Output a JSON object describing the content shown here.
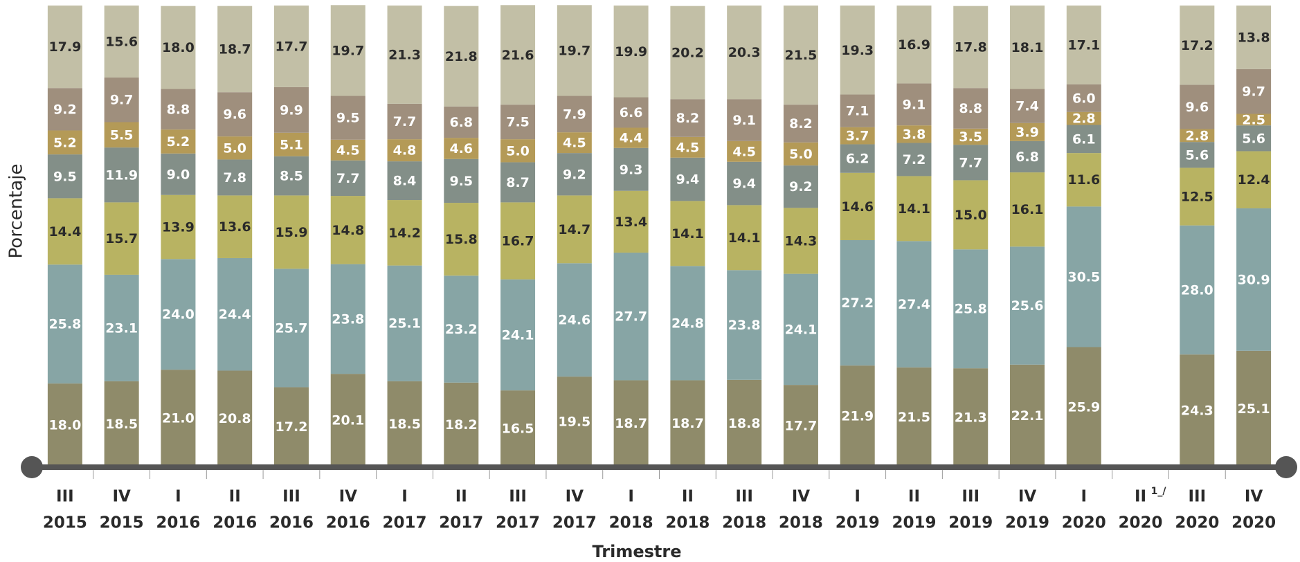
{
  "chart_data": {
    "type": "stacked_bar",
    "x_label": "Trimestre",
    "y_label": "Porcentaje",
    "categories": [
      [
        "III",
        "2015"
      ],
      [
        "IV",
        "2015"
      ],
      [
        "I",
        "2016"
      ],
      [
        "II",
        "2016"
      ],
      [
        "III",
        "2016"
      ],
      [
        "IV",
        "2016"
      ],
      [
        "I",
        "2017"
      ],
      [
        "II",
        "2017"
      ],
      [
        "III",
        "2017"
      ],
      [
        "IV",
        "2017"
      ],
      [
        "I",
        "2018"
      ],
      [
        "II",
        "2018"
      ],
      [
        "III",
        "2018"
      ],
      [
        "IV",
        "2018"
      ],
      [
        "I",
        "2019"
      ],
      [
        "II",
        "2019"
      ],
      [
        "III",
        "2019"
      ],
      [
        "IV",
        "2019"
      ],
      [
        "I",
        "2020"
      ],
      [
        "II",
        "2020",
        "1_/"
      ],
      [
        "III",
        "2020"
      ],
      [
        "IV",
        "2020"
      ]
    ],
    "ylim": [
      0,
      100
    ],
    "series": [
      {
        "color": "#8f8b6a",
        "label_color": "#ffffff",
        "values": [
          18.0,
          18.5,
          21.0,
          20.8,
          17.2,
          20.1,
          18.5,
          18.2,
          16.5,
          19.5,
          18.7,
          18.7,
          18.8,
          17.7,
          21.9,
          21.5,
          21.3,
          22.1,
          25.9,
          null,
          24.3,
          25.1
        ],
        "value_labels": [
          "18.0",
          "18.5",
          "21.0",
          "20.8",
          "17.2",
          "20.1",
          "18.5",
          "18.2",
          "16.5",
          "19.5",
          "18.7",
          "18.7",
          "18.8",
          "17.7",
          "21.9",
          "21.5",
          "21.3",
          "22.1",
          "25.9",
          null,
          "24.3",
          "25.1"
        ]
      },
      {
        "color": "#87a5a5",
        "label_color": "#ffffff",
        "values": [
          25.8,
          23.1,
          24.0,
          24.4,
          25.7,
          23.8,
          25.1,
          23.2,
          24.1,
          24.6,
          27.7,
          24.8,
          23.8,
          24.1,
          27.2,
          27.4,
          25.8,
          25.6,
          30.5,
          null,
          28.0,
          30.9
        ],
        "value_labels": [
          "25.8",
          "23.1",
          "24.0",
          "24.4",
          "25.7",
          "23.8",
          "25.1",
          "23.2",
          "24.1",
          "24.6",
          "27.7",
          "24.8",
          "23.8",
          "24.1",
          "27.2",
          "27.4",
          "25.8",
          "25.6",
          "30.5",
          null,
          "28.0",
          "30.9"
        ]
      },
      {
        "color": "#b8b362",
        "label_color": "#2a2a2a",
        "values": [
          14.4,
          15.7,
          13.9,
          13.6,
          15.9,
          14.8,
          14.2,
          15.8,
          16.7,
          14.7,
          13.4,
          14.1,
          14.1,
          14.3,
          14.6,
          14.1,
          15.0,
          16.1,
          11.6,
          null,
          12.5,
          12.4
        ],
        "value_labels": [
          "14.4",
          "15.7",
          "13.9",
          "13.6",
          "15.9",
          "14.8",
          "14.2",
          "15.8",
          "16.7",
          "14.7",
          "13.4",
          "14.1",
          "14.1",
          "14.3",
          "14.6",
          "14.1",
          "15.0",
          "16.1",
          "11.6",
          null,
          "12.5",
          "12.4"
        ]
      },
      {
        "color": "#838f88",
        "label_color": "#ffffff",
        "values": [
          9.5,
          11.9,
          9.0,
          7.8,
          8.5,
          7.7,
          8.4,
          9.5,
          8.7,
          9.2,
          9.3,
          9.4,
          9.4,
          9.2,
          6.2,
          7.2,
          7.7,
          6.8,
          6.1,
          null,
          5.6,
          5.6
        ],
        "value_labels": [
          "9.5",
          "11.9",
          "9.0",
          "7.8",
          "8.5",
          "7.7",
          "8.4",
          "9.5",
          "8.7",
          "9.2",
          "9.3",
          "9.4",
          "9.4",
          "9.2",
          "6.2",
          "7.2",
          "7.7",
          "6.8",
          "6.1",
          null,
          "5.6",
          "5.6"
        ]
      },
      {
        "color": "#b49a57",
        "label_color": "#ffffff",
        "values": [
          5.2,
          5.5,
          5.2,
          5.0,
          5.1,
          4.5,
          4.8,
          4.6,
          5.0,
          4.5,
          4.4,
          4.5,
          4.5,
          5.0,
          3.7,
          3.8,
          3.5,
          3.9,
          2.8,
          null,
          2.8,
          2.5
        ],
        "value_labels": [
          "5.2",
          "5.5",
          "5.2",
          "5.0",
          "5.1",
          "4.5",
          "4.8",
          "4.6",
          "5.0",
          "4.5",
          "4.4",
          "4.5",
          "4.5",
          "5.0",
          "3.7",
          "3.8",
          "3.5",
          "3.9",
          "2.8",
          null,
          "2.8",
          "2.5"
        ]
      },
      {
        "color": "#9f8f7d",
        "label_color": "#ffffff",
        "values": [
          9.2,
          9.7,
          8.8,
          9.6,
          9.9,
          9.5,
          7.7,
          6.8,
          7.5,
          7.9,
          6.6,
          8.2,
          9.1,
          8.2,
          7.1,
          9.1,
          8.8,
          7.4,
          6.0,
          null,
          9.6,
          9.7
        ],
        "value_labels": [
          "9.2",
          "9.7",
          "8.8",
          "9.6",
          "9.9",
          "9.5",
          "7.7",
          "6.8",
          "7.5",
          "7.9",
          "6.6",
          "8.2",
          "9.1",
          "8.2",
          "7.1",
          "9.1",
          "8.8",
          "7.4",
          "6.0",
          null,
          "9.6",
          "9.7"
        ]
      },
      {
        "color": "#c2bfa6",
        "label_color": "#2a2a2a",
        "values": [
          17.9,
          15.6,
          18.0,
          18.7,
          17.7,
          19.7,
          21.3,
          21.8,
          21.6,
          19.7,
          19.9,
          20.2,
          20.3,
          21.5,
          19.3,
          16.9,
          17.8,
          18.1,
          17.1,
          null,
          17.2,
          13.8
        ],
        "value_labels": [
          "17.9",
          "15.6",
          "18.0",
          "18.7",
          "17.7",
          "19.7",
          "21.3",
          "21.8",
          "21.6",
          "19.7",
          "19.9",
          "20.2",
          "20.3",
          "21.5",
          "19.3",
          "16.9",
          "17.8",
          "18.1",
          "17.1",
          null,
          "17.2",
          "13.8"
        ]
      }
    ]
  }
}
